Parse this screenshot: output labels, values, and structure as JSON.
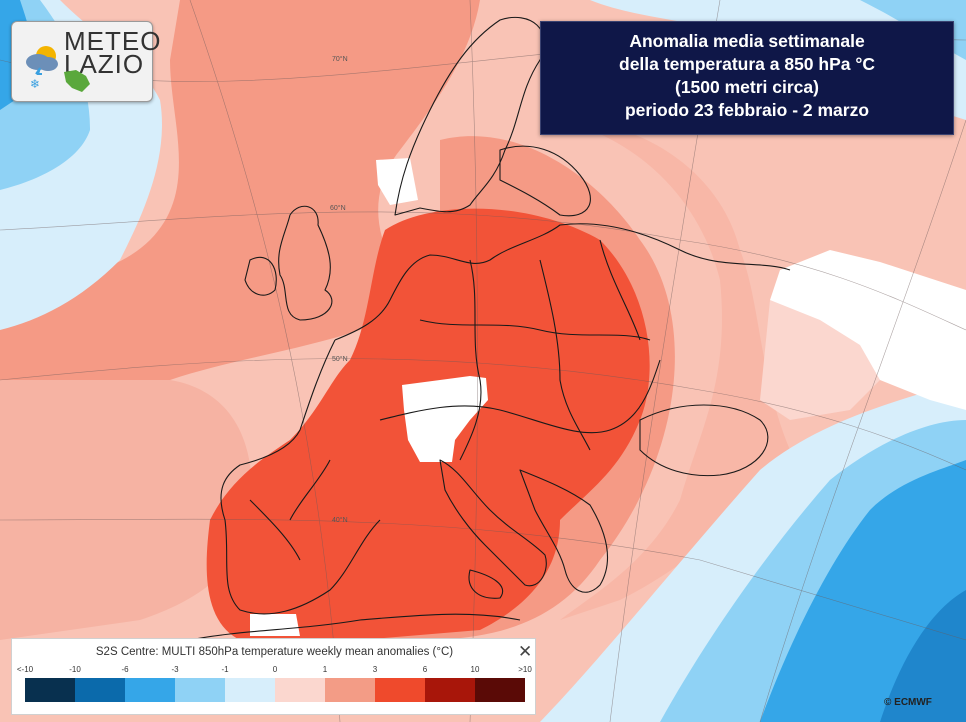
{
  "logo": {
    "line1": "METEO",
    "line2": "LAZIO"
  },
  "title": {
    "line1": "Anomalia media settimanale",
    "line2": "della temperatura a 850 hPa °C",
    "line3": "(1500 metri circa)",
    "line4": "periodo 23 febbraio - 2 marzo"
  },
  "map_labels": {
    "lat70": "70°N",
    "lat60": "60°N",
    "lat50": "50°N",
    "lat40": "40°N"
  },
  "legend": {
    "title": "S2S Centre: MULTI 850hPa temperature weekly mean anomalies (°C)",
    "close_symbol": "✕",
    "ticks": [
      "<-10",
      "-10",
      "-6",
      "-3",
      "-1",
      "0",
      "1",
      "3",
      "6",
      "10",
      ">10"
    ],
    "colors": [
      "#08304f",
      "#0b6aab",
      "#35a6e8",
      "#8fd2f5",
      "#d7eefb",
      "#fbd7cf",
      "#f39c86",
      "#ef4a2c",
      "#a8160a",
      "#5a0a06"
    ]
  },
  "credit": "© ECMWF"
}
